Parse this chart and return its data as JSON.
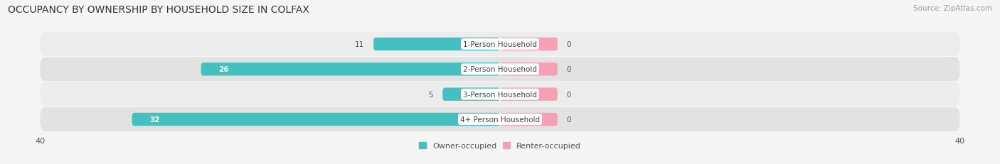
{
  "title": "OCCUPANCY BY OWNERSHIP BY HOUSEHOLD SIZE IN COLFAX",
  "source": "Source: ZipAtlas.com",
  "categories": [
    "1-Person Household",
    "2-Person Household",
    "3-Person Household",
    "4+ Person Household"
  ],
  "owner_values": [
    11,
    26,
    5,
    32
  ],
  "renter_values": [
    0,
    0,
    0,
    0
  ],
  "renter_stub": 5,
  "owner_color": "#45bfbf",
  "renter_color": "#f5a0b5",
  "xlim_left": -40,
  "xlim_right": 40,
  "bar_height": 0.52,
  "row_bg_even": "#ececec",
  "row_bg_odd": "#e2e2e2",
  "background_color": "#f5f5f5",
  "title_fontsize": 10,
  "source_fontsize": 7.5,
  "bar_label_fontsize": 7.5,
  "cat_label_fontsize": 7.5,
  "legend_fontsize": 8,
  "axis_label_fontsize": 8
}
